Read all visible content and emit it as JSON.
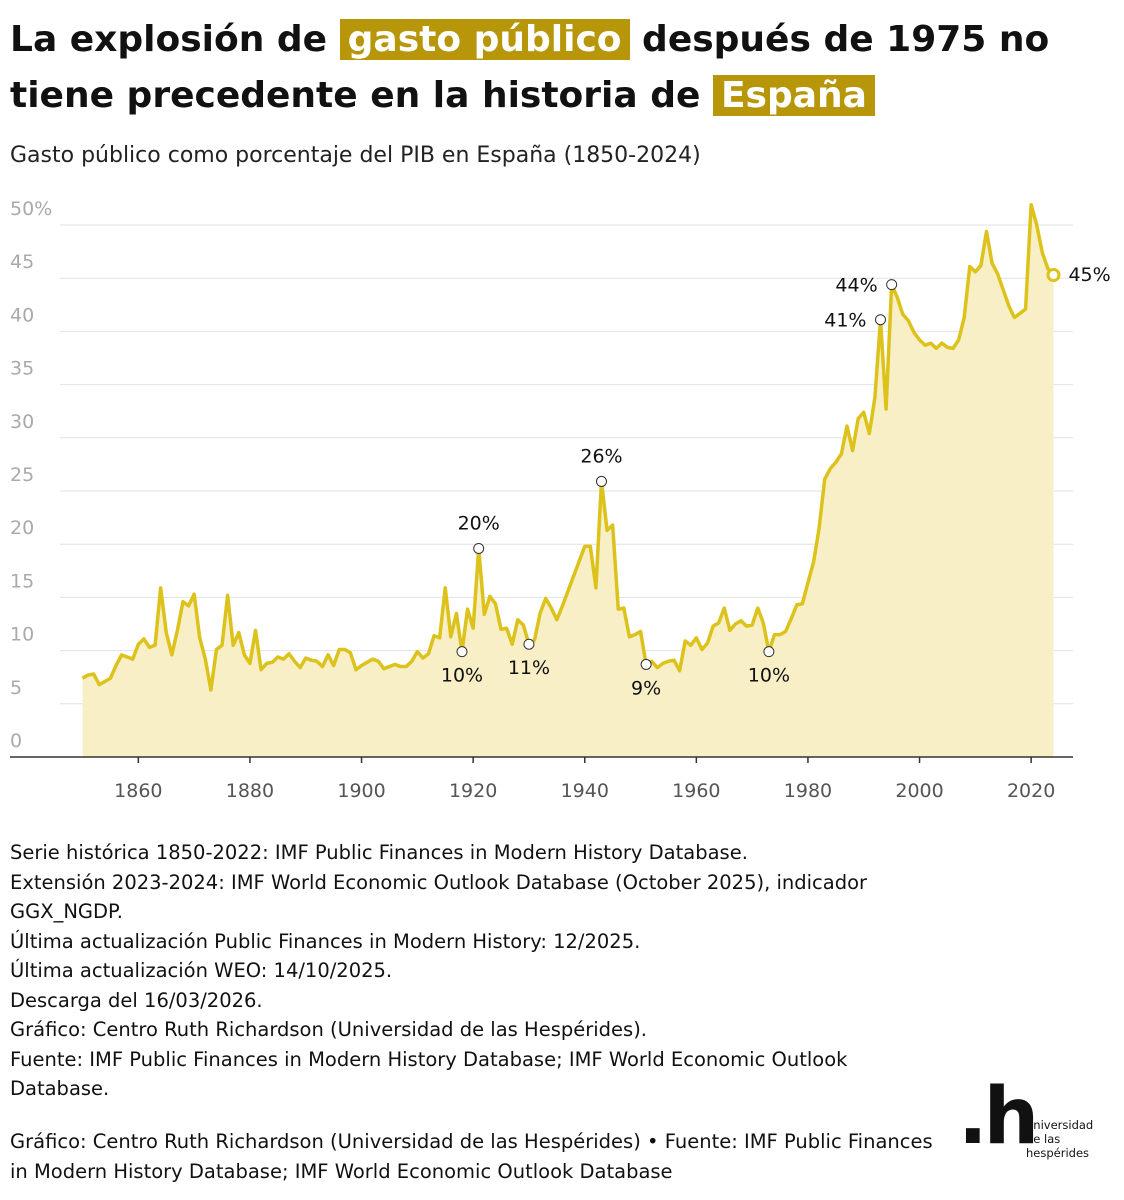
{
  "chart_data": {
    "type": "area",
    "title_segments": [
      {
        "text": "La explosión de ",
        "highlight": false
      },
      {
        "text": "gasto público",
        "highlight": true
      },
      {
        "text": " después de 1975 no tiene precedente en la historia de ",
        "highlight": false
      },
      {
        "text": "España",
        "highlight": true
      }
    ],
    "highlight_color": "#b8960a",
    "subtitle": "Gasto público como porcentaje del PIB en España (1850-2024)",
    "color": "#dcc21a",
    "fill_color": "#f8efc6",
    "x": [
      1850,
      1851,
      1852,
      1853,
      1854,
      1855,
      1856,
      1857,
      1858,
      1859,
      1860,
      1861,
      1862,
      1863,
      1864,
      1865,
      1866,
      1867,
      1868,
      1869,
      1870,
      1871,
      1872,
      1873,
      1874,
      1875,
      1876,
      1877,
      1878,
      1879,
      1880,
      1881,
      1882,
      1883,
      1884,
      1885,
      1886,
      1887,
      1888,
      1889,
      1890,
      1891,
      1892,
      1893,
      1894,
      1895,
      1896,
      1897,
      1898,
      1899,
      1900,
      1901,
      1902,
      1903,
      1904,
      1905,
      1906,
      1907,
      1908,
      1909,
      1910,
      1911,
      1912,
      1913,
      1914,
      1915,
      1916,
      1917,
      1918,
      1919,
      1920,
      1921,
      1922,
      1923,
      1924,
      1925,
      1926,
      1927,
      1928,
      1929,
      1930,
      1931,
      1932,
      1933,
      1934,
      1935,
      1936,
      1937,
      1938,
      1939,
      1940,
      1941,
      1942,
      1943,
      1944,
      1945,
      1946,
      1947,
      1948,
      1949,
      1950,
      1951,
      1952,
      1953,
      1954,
      1955,
      1956,
      1957,
      1958,
      1959,
      1960,
      1961,
      1962,
      1963,
      1964,
      1965,
      1966,
      1967,
      1968,
      1969,
      1970,
      1971,
      1972,
      1973,
      1974,
      1975,
      1976,
      1977,
      1978,
      1979,
      1980,
      1981,
      1982,
      1983,
      1984,
      1985,
      1986,
      1987,
      1988,
      1989,
      1990,
      1991,
      1992,
      1993,
      1994,
      1995,
      1996,
      1997,
      1998,
      1999,
      2000,
      2001,
      2002,
      2003,
      2004,
      2005,
      2006,
      2007,
      2008,
      2009,
      2010,
      2011,
      2012,
      2013,
      2014,
      2015,
      2016,
      2017,
      2018,
      2019,
      2020,
      2021,
      2022,
      2023,
      2024
    ],
    "values": [
      7.4,
      7.7,
      7.8,
      6.8,
      7.1,
      7.4,
      8.6,
      9.6,
      9.4,
      9.2,
      10.6,
      11.1,
      10.3,
      10.5,
      15.9,
      11.7,
      9.6,
      11.9,
      14.6,
      14.2,
      15.3,
      11.2,
      9.2,
      6.3,
      10.1,
      10.5,
      15.2,
      10.5,
      11.7,
      9.6,
      8.8,
      11.9,
      8.2,
      8.8,
      8.9,
      9.4,
      9.2,
      9.7,
      9.0,
      8.4,
      9.3,
      9.1,
      9.0,
      8.5,
      9.6,
      8.6,
      10.1,
      10.1,
      9.8,
      8.2,
      8.6,
      8.9,
      9.2,
      9.0,
      8.3,
      8.5,
      8.7,
      8.5,
      8.5,
      9.0,
      9.9,
      9.3,
      9.7,
      11.4,
      11.2,
      15.9,
      11.3,
      13.5,
      9.9,
      13.9,
      12.1,
      19.6,
      13.4,
      15.1,
      14.4,
      12.0,
      12.1,
      10.6,
      12.9,
      12.4,
      10.6,
      11.0,
      13.5,
      14.9,
      14.0,
      12.9,
      14.2,
      15.6,
      17.0,
      18.4,
      19.8,
      19.8,
      15.9,
      25.9,
      21.3,
      21.8,
      13.9,
      14.0,
      11.3,
      11.5,
      11.8,
      8.7,
      9.0,
      8.4,
      8.8,
      9.0,
      9.1,
      8.1,
      10.9,
      10.5,
      11.2,
      10.1,
      10.7,
      12.3,
      12.6,
      14.0,
      11.9,
      12.5,
      12.8,
      12.3,
      12.4,
      14.0,
      12.6,
      9.9,
      11.5,
      11.5,
      11.8,
      13.0,
      14.3,
      14.4,
      16.4,
      18.3,
      21.5,
      26.1,
      27.1,
      27.7,
      28.5,
      31.1,
      28.8,
      31.8,
      32.4,
      30.4,
      33.8,
      41.1,
      32.7,
      44.4,
      43.2,
      41.6,
      41.0,
      39.9,
      39.2,
      38.7,
      38.9,
      38.4,
      38.9,
      38.5,
      38.4,
      39.2,
      41.3,
      46.1,
      45.6,
      46.2,
      49.4,
      46.4,
      45.4,
      43.9,
      42.4,
      41.3,
      41.7,
      42.1,
      51.9,
      50.0,
      47.4,
      45.9,
      45.3
    ],
    "annotations": [
      {
        "x": 1918,
        "label": "10%",
        "position": "below"
      },
      {
        "x": 1921,
        "label": "20%",
        "position": "above"
      },
      {
        "x": 1930,
        "label": "11%",
        "position": "below"
      },
      {
        "x": 1943,
        "label": "26%",
        "position": "above"
      },
      {
        "x": 1951,
        "label": "9%",
        "position": "below"
      },
      {
        "x": 1973,
        "label": "10%",
        "position": "below"
      },
      {
        "x": 1993,
        "label": "41%",
        "position": "left"
      },
      {
        "x": 1995,
        "label": "44%",
        "position": "left"
      },
      {
        "x": 2024,
        "label": "45%",
        "position": "right"
      }
    ],
    "xlim": [
      1837,
      2027.5
    ],
    "xticks": [
      1860,
      1880,
      1900,
      1920,
      1940,
      1960,
      1980,
      2000,
      2020
    ],
    "ylim": [
      0,
      52
    ],
    "yticks": [
      0,
      5,
      10,
      15,
      20,
      25,
      30,
      35,
      40,
      45,
      {
        "value": 50,
        "label": "50%"
      }
    ],
    "grid": true,
    "notes": [
      "Serie histórica 1850-2022: IMF Public Finances in Modern History Database.",
      "Extensión 2023-2024: IMF World Economic Outlook Database (October 2025), indicador GGX_NGDP.",
      "Última actualización Public Finances in Modern History: 12/2025.",
      "Última actualización WEO: 14/10/2025.",
      "Descarga del 16/03/2026.",
      "Gráfico: Centro Ruth Richardson (Universidad de las Hespérides).",
      "Fuente: IMF Public Finances in Modern History Database; IMF World Economic Outlook Database."
    ],
    "footer": "Gráfico: Centro Ruth Richardson (Universidad de las Hespérides) • Fuente: IMF Public Finances in Modern History Database; IMF World Economic Outlook Database",
    "logo_mark": ".h",
    "logo_lines": [
      "universidad",
      "de las",
      "hespérides"
    ]
  }
}
